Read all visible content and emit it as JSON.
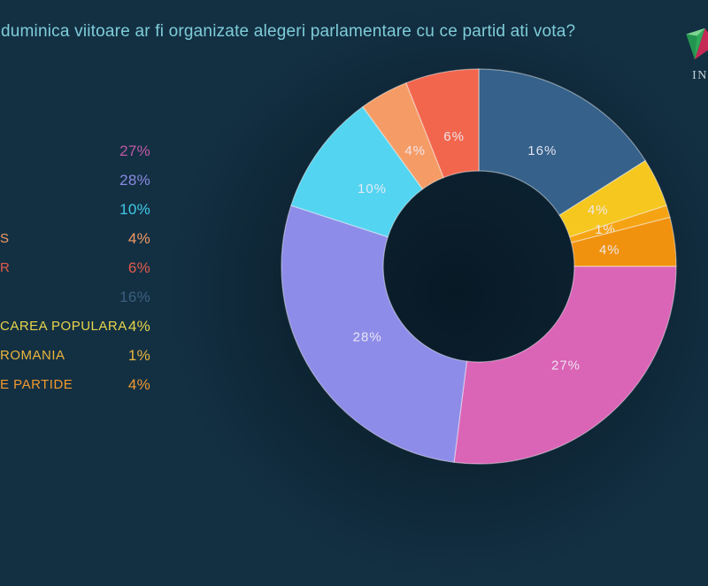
{
  "title": "duminica viitoare ar fi organizate alegeri parlamentare cu ce partid ati vota?",
  "brand": {
    "name_visible": "IN",
    "gem_colors": {
      "green_light": "#7ed492",
      "green": "#2fa85a",
      "crimson": "#c52a55"
    }
  },
  "theme": {
    "background": "#133043",
    "shadow": "#061520",
    "title_color": "#7fccd9",
    "segment_divider": "rgba(255,255,255,0.45)",
    "donut_label_color": "rgba(240,235,246,0.92)"
  },
  "chart_data": {
    "type": "pie",
    "subtype": "donut",
    "title": "duminica viitoare ar fi organizate alegeri parlamentare cu ce partid ati vota?",
    "unit": "%",
    "legend_position": "left",
    "start_angle_deg": 0,
    "direction": "clockwise",
    "segments": [
      {
        "label": "16%",
        "value": 16,
        "color": "#35618a"
      },
      {
        "label": "4%",
        "value": 4,
        "color": "#f5c71f"
      },
      {
        "label": "1%",
        "value": 1,
        "color": "#f6a313"
      },
      {
        "label": "4%",
        "value": 4,
        "color": "#f0920e"
      },
      {
        "label": "27%",
        "value": 27,
        "color": "#da64b6"
      },
      {
        "label": "28%",
        "value": 28,
        "color": "#8d8ce8"
      },
      {
        "label": "10%",
        "value": 10,
        "color": "#53d4f0"
      },
      {
        "label": "4%",
        "value": 4,
        "color": "#f59c66"
      },
      {
        "label": "6%",
        "value": 6,
        "color": "#f2664d"
      }
    ],
    "legend": [
      {
        "party_visible": "",
        "value": "27%",
        "color": "#c058a4"
      },
      {
        "party_visible": "",
        "value": "28%",
        "color": "#8b8ae2"
      },
      {
        "party_visible": "",
        "value": "10%",
        "color": "#41c9e8"
      },
      {
        "party_visible": "S",
        "value": "4%",
        "color": "#f09a63"
      },
      {
        "party_visible": "R",
        "value": "6%",
        "color": "#e25a4b"
      },
      {
        "party_visible": "",
        "value": "16%",
        "color": "#3c5f80"
      },
      {
        "party_visible": "CAREA POPULARA",
        "value": "4%",
        "color": "#e8d44b"
      },
      {
        "party_visible": "ROMANIA",
        "value": "1%",
        "color": "#edb53c"
      },
      {
        "party_visible": "E PARTIDE",
        "value": "4%",
        "color": "#f0992e"
      }
    ]
  }
}
